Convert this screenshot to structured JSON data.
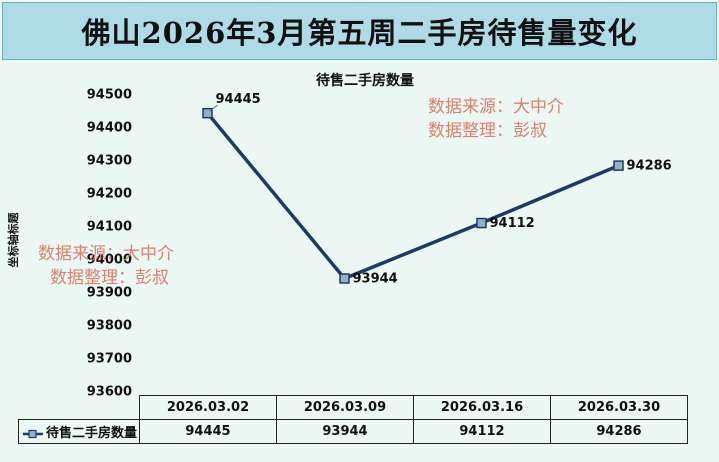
{
  "page_title": "佛山2026年3月第五周二手房待售量变化",
  "watermarks": [
    {
      "line1": "数据来源：大中介",
      "line2": "数据整理：彭叔"
    },
    {
      "line1": "数据来源：大中介",
      "line2": "数据整理：彭叔"
    }
  ],
  "colors": {
    "line": "#1f3a66",
    "marker_fill": "#8fb3c9",
    "title_bar": "#aedbe6",
    "background": "#eaf7f3",
    "watermark": "#d9826f"
  },
  "chart_data": {
    "type": "line",
    "title": "待售二手房数量",
    "xlabel": "",
    "ylabel": "坐标轴标题",
    "categories": [
      "2026.03.02",
      "2026.03.09",
      "2026.03.16",
      "2026.03.30"
    ],
    "series": [
      {
        "name": "待售二手房数量",
        "values": [
          94445,
          93944,
          94112,
          94286
        ]
      }
    ],
    "data_labels": [
      "94445",
      "93944",
      "94112",
      "94286"
    ],
    "ylim": [
      93600,
      94500
    ],
    "yticks": [
      "94500",
      "94400",
      "94300",
      "94200",
      "94100",
      "94000",
      "93900",
      "93800",
      "93700",
      "93600"
    ],
    "grid": false,
    "legend": "data-table"
  }
}
